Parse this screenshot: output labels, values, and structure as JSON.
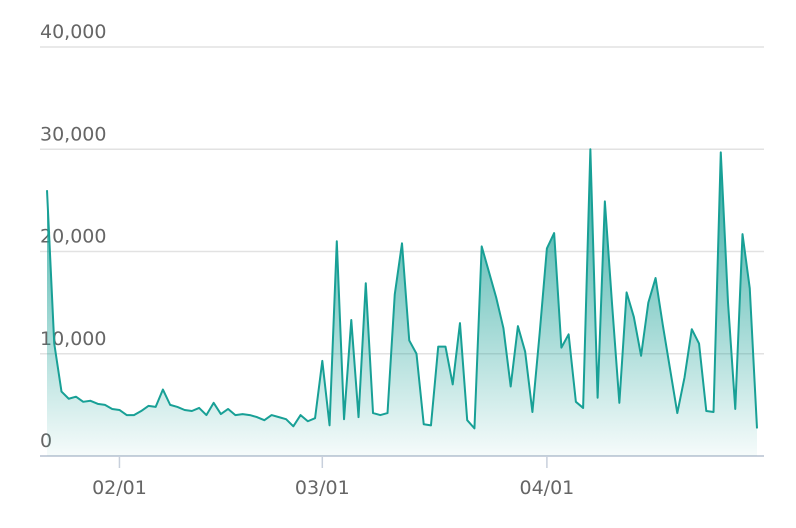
{
  "chart_data": {
    "type": "area",
    "categories": [
      null,
      null,
      null,
      null,
      null,
      null,
      null,
      null,
      null,
      null,
      "02/01",
      null,
      null,
      null,
      null,
      null,
      null,
      null,
      null,
      null,
      null,
      null,
      null,
      null,
      null,
      null,
      null,
      null,
      null,
      null,
      null,
      null,
      null,
      null,
      null,
      null,
      null,
      null,
      "03/01",
      null,
      null,
      null,
      null,
      null,
      null,
      null,
      null,
      null,
      null,
      null,
      null,
      null,
      null,
      null,
      null,
      null,
      null,
      null,
      null,
      null,
      null,
      null,
      null,
      null,
      null,
      null,
      null,
      null,
      null,
      "04/01",
      null,
      null,
      null,
      null,
      null,
      null,
      null,
      null,
      null,
      null,
      null,
      null,
      null,
      null,
      null,
      null,
      null,
      null,
      null,
      null,
      null,
      null,
      null,
      null,
      null,
      null,
      null,
      null,
      null
    ],
    "values": [
      26000,
      11000,
      6300,
      5600,
      5800,
      5300,
      5400,
      5100,
      5000,
      4600,
      4500,
      4000,
      4000,
      4400,
      4900,
      4800,
      6500,
      5000,
      4800,
      4500,
      4400,
      4700,
      4000,
      5200,
      4100,
      4600,
      4000,
      4100,
      4000,
      3800,
      3500,
      4000,
      3800,
      3600,
      2900,
      4000,
      3400,
      3700,
      9300,
      3000,
      21000,
      3600,
      13300,
      3800,
      16900,
      4200,
      4000,
      4200,
      15800,
      20800,
      11300,
      10000,
      3100,
      3000,
      10700,
      10700,
      7000,
      13000,
      3500,
      2700,
      20500,
      18000,
      15500,
      12500,
      6800,
      12700,
      10200,
      4300,
      12000,
      20300,
      21800,
      10600,
      11900,
      5300,
      4700,
      30000,
      5700,
      24900,
      14800,
      5200,
      16000,
      13600,
      9800,
      15000,
      17400,
      12800,
      8500,
      4200,
      7700,
      12400,
      11000,
      4400,
      4300,
      29700,
      15000,
      4600,
      21700,
      16400,
      2700
    ],
    "color": "#18a096",
    "ylim": [
      0,
      40000
    ],
    "yticks": [
      0,
      {
        "value": 10000,
        "label": "10,000"
      },
      {
        "value": 20000,
        "label": "20,000"
      },
      {
        "value": 30000,
        "label": "30,000"
      },
      {
        "value": 40000,
        "label": "40,000"
      }
    ],
    "grid": true
  }
}
